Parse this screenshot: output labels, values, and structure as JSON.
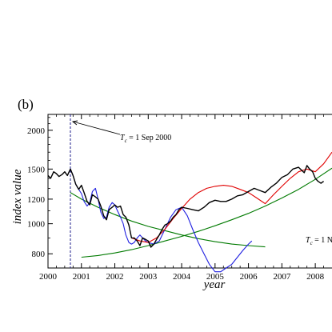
{
  "chart_data": {
    "type": "line",
    "panel_label": "(b)",
    "xlabel": "year",
    "ylabel": "index value",
    "x_range": [
      2000.0,
      2008.5
    ],
    "y_range": [
      720,
      2250
    ],
    "y_scale": "log",
    "x_ticks": [
      "2000",
      "2001",
      "2002",
      "2003",
      "2004",
      "2005",
      "2006",
      "2007",
      "2008"
    ],
    "y_ticks": [
      "800",
      "1000",
      "1200",
      "1500",
      "2000"
    ],
    "annotations": [
      {
        "text": "T",
        "subscript": "c",
        "rest": " = 1 Sep 2000",
        "at_x": 2000.67
      },
      {
        "text": "T",
        "subscript": "c",
        "rest": " = 1 N",
        "at_x": 2008.0
      }
    ],
    "vline_x": 2000.67,
    "series": [
      {
        "color": "#000000",
        "x": [
          2000.0,
          2000.08,
          2000.17,
          2000.25,
          2000.33,
          2000.42,
          2000.5,
          2000.58,
          2000.67,
          2000.75,
          2000.83,
          2000.92,
          2001.0,
          2001.08,
          2001.17,
          2001.25,
          2001.33,
          2001.42,
          2001.5,
          2001.58,
          2001.67,
          2001.75,
          2001.83,
          2001.92,
          2002.0,
          2002.08,
          2002.17,
          2002.25,
          2002.33,
          2002.42,
          2002.5,
          2002.58,
          2002.67,
          2002.75,
          2002.83,
          2002.92,
          2003.0,
          2003.08,
          2003.17,
          2003.25,
          2003.33,
          2003.42,
          2003.5,
          2003.58,
          2003.67,
          2003.75,
          2003.83,
          2003.92,
          2004.0,
          2004.17,
          2004.33,
          2004.5,
          2004.67,
          2004.83,
          2005.0,
          2005.17,
          2005.33,
          2005.5,
          2005.67,
          2005.83,
          2006.0,
          2006.17,
          2006.33,
          2006.5,
          2006.67,
          2006.83,
          2007.0,
          2007.17,
          2007.33,
          2007.5,
          2007.58,
          2007.67,
          2007.75,
          2007.83,
          2007.92,
          2008.0,
          2008.08,
          2008.17,
          2008.25
        ],
        "y": [
          1430,
          1400,
          1470,
          1450,
          1420,
          1440,
          1470,
          1430,
          1500,
          1430,
          1340,
          1290,
          1330,
          1260,
          1180,
          1150,
          1240,
          1220,
          1200,
          1140,
          1060,
          1030,
          1110,
          1130,
          1150,
          1130,
          1140,
          1070,
          1050,
          990,
          900,
          900,
          880,
          850,
          900,
          890,
          880,
          840,
          860,
          890,
          920,
          960,
          990,
          1000,
          1020,
          1050,
          1070,
          1110,
          1130,
          1120,
          1110,
          1100,
          1130,
          1170,
          1190,
          1180,
          1180,
          1200,
          1230,
          1240,
          1270,
          1300,
          1280,
          1260,
          1310,
          1350,
          1410,
          1440,
          1500,
          1520,
          1490,
          1460,
          1540,
          1500,
          1470,
          1400,
          1370,
          1350,
          1370
        ]
      },
      {
        "color": "#2020e0",
        "x": [
          2000.67,
          2000.75,
          2000.83,
          2000.92,
          2001.0,
          2001.08,
          2001.17,
          2001.25,
          2001.33,
          2001.42,
          2001.5,
          2001.58,
          2001.67,
          2001.75,
          2001.83,
          2001.92,
          2002.0,
          2002.08,
          2002.17,
          2002.25,
          2002.33,
          2002.42,
          2002.5,
          2002.58,
          2002.67,
          2002.75,
          2002.83,
          2002.92,
          2003.0,
          2003.17,
          2003.33,
          2003.5,
          2003.67,
          2003.83,
          2004.0,
          2004.17,
          2004.33,
          2004.5,
          2004.67,
          2004.83,
          2005.0,
          2005.17,
          2005.33,
          2005.5,
          2005.67,
          2005.83,
          2006.0,
          2006.1
        ],
        "y": [
          1500,
          1430,
          1340,
          1290,
          1250,
          1180,
          1140,
          1170,
          1270,
          1300,
          1200,
          1090,
          1040,
          1050,
          1130,
          1170,
          1150,
          1100,
          1050,
          1000,
          920,
          870,
          860,
          870,
          900,
          920,
          900,
          880,
          870,
          860,
          880,
          960,
          1050,
          1110,
          1130,
          1060,
          960,
          870,
          800,
          740,
          700,
          700,
          720,
          740,
          780,
          820,
          860,
          880
        ]
      },
      {
        "color": "#e00000",
        "x": [
          2002.5,
          2002.75,
          2003.0,
          2003.25,
          2003.5,
          2003.75,
          2004.0,
          2004.25,
          2004.5,
          2004.75,
          2005.0,
          2005.25,
          2005.5,
          2005.75,
          2006.0,
          2006.25,
          2006.5,
          2006.75,
          2007.0,
          2007.25,
          2007.5,
          2007.75,
          2008.0,
          2008.25,
          2008.5
        ],
        "y": [
          900,
          880,
          870,
          900,
          960,
          1040,
          1120,
          1200,
          1260,
          1300,
          1320,
          1330,
          1320,
          1290,
          1260,
          1210,
          1160,
          1240,
          1320,
          1400,
          1470,
          1500,
          1470,
          1560,
          1700
        ]
      },
      {
        "color": "#007a00",
        "x": [
          2001.0,
          2001.5,
          2002.0,
          2002.5,
          2003.0,
          2003.5,
          2004.0,
          2004.5,
          2005.0,
          2005.5,
          2006.0,
          2006.5,
          2007.0,
          2007.5,
          2008.0,
          2008.5
        ],
        "y": [
          780,
          790,
          805,
          825,
          850,
          880,
          910,
          945,
          985,
          1030,
          1080,
          1140,
          1210,
          1290,
          1390,
          1510
        ]
      },
      {
        "color": "#007a00",
        "x": [
          2000.67,
          2001.0,
          2001.5,
          2002.0,
          2002.5,
          2003.0,
          2003.5,
          2004.0,
          2004.5,
          2005.0,
          2005.5,
          2006.0,
          2006.5
        ],
        "y": [
          1260,
          1200,
          1130,
          1070,
          1020,
          980,
          950,
          920,
          895,
          875,
          860,
          850,
          842
        ]
      }
    ]
  }
}
